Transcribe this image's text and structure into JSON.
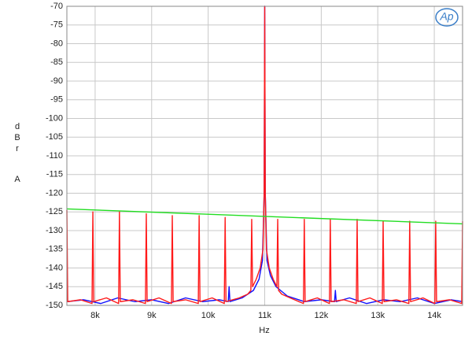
{
  "chart_data": {
    "type": "line",
    "x_label": "Hz",
    "y_label": "dBr",
    "y_label_unit": "A",
    "logo": "Ap",
    "xlim": [
      7500,
      14500
    ],
    "xticks": [
      {
        "value": 8000,
        "label": "8k"
      },
      {
        "value": 9000,
        "label": "9k"
      },
      {
        "value": 10000,
        "label": "10k"
      },
      {
        "value": 11000,
        "label": "11k"
      },
      {
        "value": 12000,
        "label": "12k"
      },
      {
        "value": 13000,
        "label": "13k"
      },
      {
        "value": 14000,
        "label": "14k"
      }
    ],
    "ylim": [
      -150,
      -70
    ],
    "yticks": [
      -70,
      -75,
      -80,
      -85,
      -90,
      -95,
      -100,
      -105,
      -110,
      -115,
      -120,
      -125,
      -130,
      -135,
      -140,
      -145,
      -150
    ],
    "grid": true,
    "series": [
      {
        "color": "#1010ff",
        "x": [
          7500,
          7800,
          8100,
          8400,
          8700,
          9000,
          9300,
          9600,
          9900,
          10200,
          10355,
          10370,
          10385,
          10600,
          10800,
          10900,
          10960,
          10990,
          11000,
          11010,
          11040,
          11100,
          11200,
          11400,
          11700,
          12000,
          12235,
          12250,
          12265,
          12500,
          12800,
          13100,
          13400,
          13700,
          14000,
          14300,
          14500
        ],
        "values": [
          -149,
          -148.5,
          -149.5,
          -148,
          -149,
          -148.5,
          -149.5,
          -148,
          -149,
          -148.5,
          -149,
          -145,
          -149,
          -148,
          -146,
          -143,
          -138,
          -120,
          -70,
          -120,
          -138,
          -142,
          -145,
          -147.5,
          -149,
          -148.5,
          -149,
          -146,
          -149,
          -148,
          -149.5,
          -148.5,
          -149,
          -148,
          -149.5,
          -148.5,
          -149
        ]
      },
      {
        "color": "#ff1a1a",
        "x": [
          7500,
          7515,
          7740,
          7945,
          7960,
          7975,
          8200,
          8415,
          8430,
          8445,
          8670,
          8890,
          8905,
          8920,
          9130,
          9350,
          9365,
          9380,
          9600,
          9825,
          9840,
          9855,
          10070,
          10285,
          10300,
          10315,
          10550,
          10700,
          10755,
          10770,
          10785,
          10850,
          10920,
          10970,
          10990,
          11000,
          11010,
          11030,
          11080,
          11150,
          11215,
          11230,
          11245,
          11300,
          11450,
          11685,
          11700,
          11715,
          11930,
          12145,
          12160,
          12175,
          12400,
          12620,
          12635,
          12650,
          12860,
          13080,
          13095,
          13110,
          13330,
          13550,
          13565,
          13580,
          13800,
          14010,
          14025,
          14040,
          14270,
          14485,
          14500
        ],
        "values": [
          -124.5,
          -149,
          -148.5,
          -149.5,
          -125,
          -149,
          -148,
          -149.5,
          -125,
          -149,
          -148.5,
          -149.5,
          -125.5,
          -149,
          -148,
          -149.5,
          -126,
          -149,
          -148.5,
          -149.5,
          -126,
          -149,
          -148,
          -149.5,
          -126.5,
          -149,
          -148,
          -147,
          -146,
          -127,
          -145,
          -143,
          -140,
          -135,
          -120,
          -70,
          -120,
          -135,
          -140,
          -143,
          -145,
          -127,
          -146,
          -147,
          -148,
          -149.5,
          -127,
          -149,
          -148,
          -149.5,
          -127,
          -149,
          -148.5,
          -149.5,
          -127,
          -149,
          -148,
          -149.5,
          -127.5,
          -149,
          -148.5,
          -149.5,
          -127.5,
          -149,
          -148,
          -149.5,
          -127.5,
          -149,
          -148.5,
          -149.5,
          -127.5
        ]
      },
      {
        "color": "#22dd22",
        "x": [
          7500,
          14500
        ],
        "values": [
          -124.2,
          -128.2
        ]
      }
    ]
  }
}
